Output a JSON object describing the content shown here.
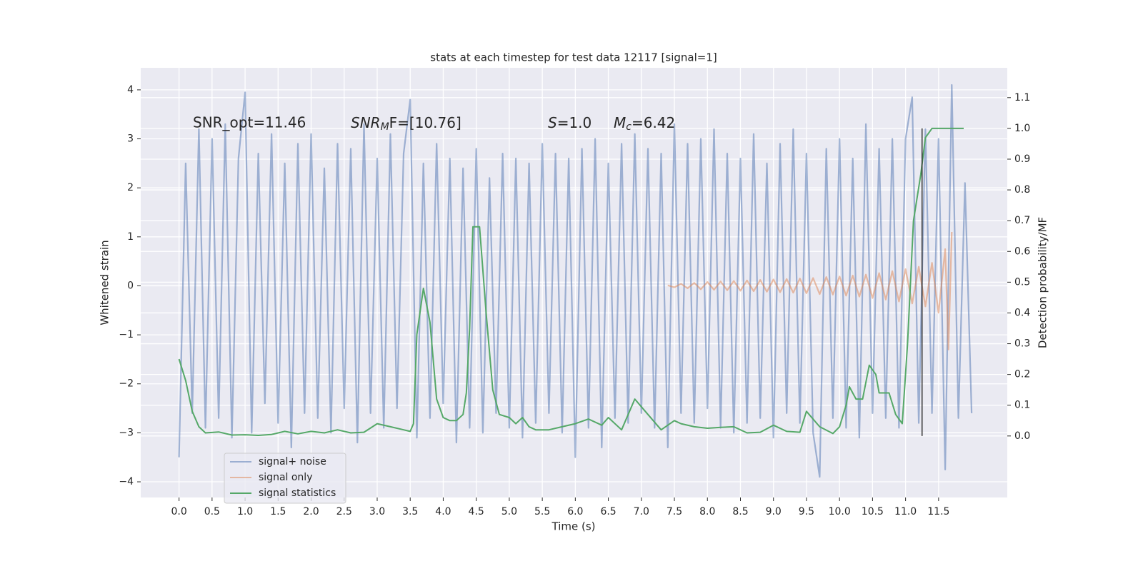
{
  "chart_data": {
    "type": "line",
    "title": "stats at each timestep for test data 12117 [signal=1]",
    "xlabel": "Time (s)",
    "ylabel": "Whitened strain",
    "y2label": "Detection probability/MF",
    "annotations": [
      {
        "text": "SNR_opt=11.46"
      },
      {
        "base": "SNR",
        "sub": "M",
        "tail": "F=[10.76]"
      },
      {
        "base": "S",
        "tail": "=1.0"
      },
      {
        "base": "M",
        "sub": "c",
        "tail": "=6.42"
      }
    ],
    "xlim": [
      -0.58,
      12.54
    ],
    "ylim": [
      -4.32,
      4.45
    ],
    "y2lim": [
      -0.2,
      1.197
    ],
    "xticks": [
      {
        "value": 0,
        "label": "0.0"
      },
      0.5,
      {
        "value": 1,
        "label": "1.0"
      },
      1.5,
      {
        "value": 2,
        "label": "2.0"
      },
      2.5,
      {
        "value": 3,
        "label": "3.0"
      },
      3.5,
      {
        "value": 4,
        "label": "4.0"
      },
      4.5,
      {
        "value": 5,
        "label": "5.0"
      },
      5.5,
      {
        "value": 6,
        "label": "6.0"
      },
      6.5,
      {
        "value": 7,
        "label": "7.0"
      },
      7.5,
      {
        "value": 8,
        "label": "8.0"
      },
      8.5,
      {
        "value": 9,
        "label": "9.0"
      },
      9.5,
      {
        "value": 10,
        "label": "10.0"
      },
      10.5,
      {
        "value": 11,
        "label": "11.0"
      },
      11.5
    ],
    "yticks": [
      {
        "value": -4,
        "label": "−4"
      },
      {
        "value": -3,
        "label": "−3"
      },
      {
        "value": -2,
        "label": "−2"
      },
      {
        "value": -1,
        "label": "−1"
      },
      0,
      1,
      2,
      3,
      4
    ],
    "y2ticks": [
      {
        "value": 0,
        "label": "0.0"
      },
      0.1,
      0.2,
      0.3,
      0.4,
      0.5,
      0.6,
      0.7,
      0.8,
      0.9,
      {
        "value": 1,
        "label": "1.0"
      },
      1.1
    ],
    "grid": true,
    "legend": "lower left",
    "vertical_line": {
      "x": 11.25,
      "y2_from": 0,
      "y2_to": 1.0,
      "color": "#333333"
    },
    "series": [
      {
        "name": "signal+ noise",
        "color": "#4c72b0",
        "opacity": 0.5,
        "x": [
          0.0,
          0.1,
          0.2,
          0.3,
          0.4,
          0.5,
          0.6,
          0.7,
          0.8,
          0.9,
          1.0,
          1.1,
          1.2,
          1.3,
          1.4,
          1.5,
          1.6,
          1.7,
          1.8,
          1.9,
          2.0,
          2.1,
          2.2,
          2.3,
          2.4,
          2.5,
          2.6,
          2.7,
          2.8,
          2.9,
          3.0,
          3.1,
          3.2,
          3.3,
          3.4,
          3.5,
          3.6,
          3.7,
          3.8,
          3.9,
          4.0,
          4.1,
          4.2,
          4.3,
          4.4,
          4.5,
          4.6,
          4.7,
          4.8,
          4.9,
          5.0,
          5.1,
          5.2,
          5.3,
          5.4,
          5.5,
          5.6,
          5.7,
          5.8,
          5.9,
          6.0,
          6.1,
          6.2,
          6.3,
          6.4,
          6.5,
          6.6,
          6.7,
          6.8,
          6.9,
          7.0,
          7.1,
          7.2,
          7.3,
          7.4,
          7.5,
          7.6,
          7.7,
          7.8,
          7.9,
          8.0,
          8.1,
          8.2,
          8.3,
          8.4,
          8.5,
          8.6,
          8.7,
          8.8,
          8.9,
          9.0,
          9.1,
          9.2,
          9.3,
          9.4,
          9.5,
          9.6,
          9.7,
          9.8,
          9.9,
          10.0,
          10.1,
          10.2,
          10.3,
          10.4,
          10.5,
          10.6,
          10.7,
          10.8,
          10.9,
          11.0,
          11.1,
          11.2,
          11.3,
          11.4,
          11.5,
          11.6,
          11.7,
          11.8,
          11.9,
          12.0
        ],
        "values": [
          -3.5,
          2.5,
          -2.6,
          3.2,
          -2.9,
          3.0,
          -2.7,
          3.3,
          -3.1,
          2.6,
          3.95,
          -3.0,
          2.7,
          -2.4,
          3.1,
          -2.8,
          2.5,
          -3.3,
          2.9,
          -2.6,
          3.1,
          -2.7,
          2.4,
          -3.0,
          2.9,
          -2.5,
          2.8,
          -3.2,
          3.3,
          -2.6,
          2.6,
          -2.9,
          3.1,
          -2.5,
          2.7,
          3.8,
          -3.1,
          2.5,
          -2.7,
          2.9,
          -2.4,
          2.6,
          -3.2,
          2.4,
          -2.9,
          2.8,
          -3.0,
          2.2,
          -2.6,
          2.7,
          -2.9,
          2.6,
          -3.1,
          2.5,
          -2.8,
          2.9,
          -2.6,
          2.7,
          -3.0,
          2.6,
          -3.5,
          2.8,
          -2.9,
          3.0,
          -3.3,
          2.5,
          -2.7,
          2.9,
          -2.8,
          3.1,
          -2.6,
          2.8,
          -2.9,
          2.7,
          -3.3,
          3.3,
          -2.6,
          2.9,
          -2.8,
          3.0,
          -2.5,
          3.2,
          -2.9,
          2.7,
          -3.0,
          2.6,
          -2.8,
          3.1,
          -2.7,
          2.5,
          -3.1,
          2.9,
          -2.6,
          3.2,
          -2.8,
          2.7,
          -3.0,
          -3.9,
          2.8,
          -2.7,
          3.0,
          -2.9,
          2.6,
          -3.1,
          3.3,
          -2.6,
          2.8,
          -2.7,
          3.0,
          -2.9,
          3.0,
          3.85,
          -2.8,
          3.2,
          -2.6,
          3.0,
          -3.75,
          4.1,
          -2.7,
          2.1,
          -2.6
        ]
      },
      {
        "name": "signal only",
        "color": "#dd8452",
        "opacity": 0.5,
        "x": [
          7.4,
          7.5,
          7.6,
          7.7,
          7.8,
          7.9,
          8.0,
          8.1,
          8.2,
          8.3,
          8.4,
          8.5,
          8.6,
          8.7,
          8.8,
          8.9,
          9.0,
          9.1,
          9.2,
          9.3,
          9.4,
          9.5,
          9.6,
          9.7,
          9.8,
          9.9,
          10.0,
          10.1,
          10.2,
          10.3,
          10.4,
          10.5,
          10.6,
          10.7,
          10.8,
          10.9,
          11.0,
          11.1,
          11.2,
          11.3,
          11.4,
          11.5,
          11.6,
          11.65,
          11.7
        ],
        "values": [
          0.01,
          -0.03,
          0.04,
          -0.05,
          0.06,
          -0.07,
          0.08,
          -0.08,
          0.09,
          -0.09,
          0.1,
          -0.1,
          0.11,
          -0.11,
          0.12,
          -0.12,
          0.13,
          -0.13,
          0.14,
          -0.14,
          0.15,
          -0.15,
          0.16,
          -0.17,
          0.18,
          -0.18,
          0.19,
          -0.2,
          0.21,
          -0.22,
          0.23,
          -0.25,
          0.26,
          -0.28,
          0.3,
          -0.32,
          0.34,
          -0.36,
          0.39,
          -0.42,
          0.47,
          -0.55,
          0.75,
          -1.3,
          1.1
        ]
      },
      {
        "name": "signal statistics",
        "color": "#55a868",
        "opacity": 1,
        "axis": "y2",
        "x": [
          0.0,
          0.1,
          0.2,
          0.3,
          0.4,
          0.6,
          0.8,
          1.0,
          1.2,
          1.4,
          1.6,
          1.8,
          2.0,
          2.2,
          2.4,
          2.6,
          2.8,
          3.0,
          3.2,
          3.4,
          3.5,
          3.55,
          3.6,
          3.7,
          3.8,
          3.9,
          4.0,
          4.1,
          4.2,
          4.3,
          4.35,
          4.4,
          4.45,
          4.55,
          4.65,
          4.75,
          4.85,
          5.0,
          5.1,
          5.2,
          5.3,
          5.4,
          5.6,
          5.8,
          6.0,
          6.2,
          6.4,
          6.5,
          6.7,
          6.9,
          7.1,
          7.3,
          7.5,
          7.6,
          7.8,
          8.0,
          8.2,
          8.4,
          8.6,
          8.8,
          9.0,
          9.2,
          9.4,
          9.5,
          9.7,
          9.9,
          10.0,
          10.1,
          10.15,
          10.25,
          10.35,
          10.45,
          10.55,
          10.6,
          10.75,
          10.85,
          10.95,
          11.03,
          11.12,
          11.23,
          11.3,
          11.4,
          11.88
        ],
        "values": [
          0.25,
          0.18,
          0.08,
          0.03,
          0.01,
          0.013,
          0.003,
          0.004,
          0.002,
          0.005,
          0.015,
          0.007,
          0.015,
          0.01,
          0.02,
          0.01,
          0.012,
          0.04,
          0.03,
          0.02,
          0.015,
          0.04,
          0.33,
          0.48,
          0.37,
          0.12,
          0.06,
          0.05,
          0.05,
          0.07,
          0.14,
          0.35,
          0.68,
          0.68,
          0.4,
          0.15,
          0.07,
          0.06,
          0.04,
          0.06,
          0.03,
          0.02,
          0.02,
          0.03,
          0.04,
          0.055,
          0.035,
          0.06,
          0.02,
          0.12,
          0.07,
          0.02,
          0.05,
          0.04,
          0.03,
          0.025,
          0.028,
          0.03,
          0.01,
          0.012,
          0.035,
          0.015,
          0.012,
          0.08,
          0.03,
          0.008,
          0.03,
          0.1,
          0.16,
          0.12,
          0.12,
          0.23,
          0.2,
          0.14,
          0.14,
          0.07,
          0.04,
          0.3,
          0.7,
          0.85,
          0.97,
          1.0,
          1.0
        ]
      }
    ]
  }
}
